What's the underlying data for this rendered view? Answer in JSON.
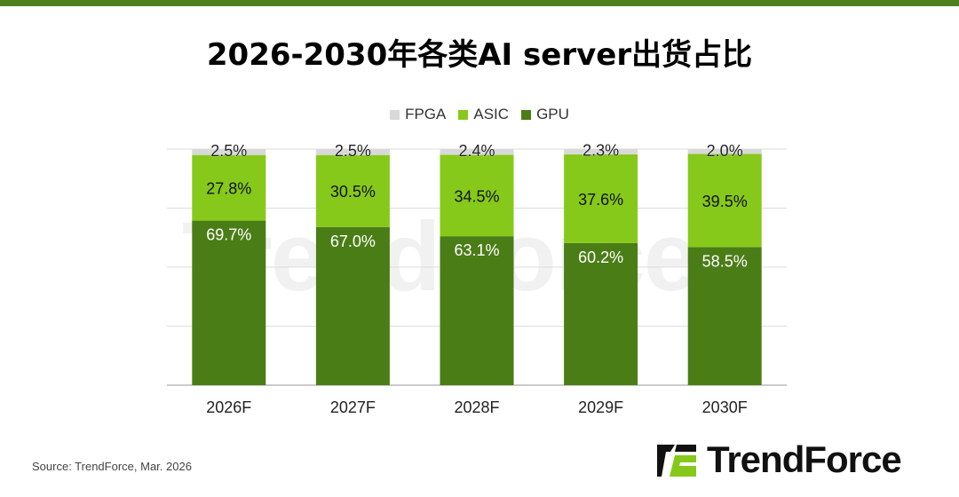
{
  "title": "2026-2030年各类AI server出货占比",
  "source": "Source: TrendForce, Mar. 2026",
  "logo_text": "TrendForce",
  "colors": {
    "GPU": "#4b7d17",
    "ASIC": "#86c91a",
    "FPGA": "#d9d9d9",
    "brand_bar": "#4d7f1e"
  },
  "chart_data": {
    "type": "bar",
    "stacked": true,
    "categories": [
      "2026F",
      "2027F",
      "2028F",
      "2029F",
      "2030F"
    ],
    "series": [
      {
        "name": "GPU",
        "values": [
          69.7,
          67.0,
          63.1,
          60.2,
          58.5
        ],
        "labels": [
          "69.7%",
          "67.0%",
          "63.1%",
          "60.2%",
          "58.5%"
        ]
      },
      {
        "name": "ASIC",
        "values": [
          27.8,
          30.5,
          34.5,
          37.6,
          39.5
        ],
        "labels": [
          "27.8%",
          "30.5%",
          "34.5%",
          "37.6%",
          "39.5%"
        ]
      },
      {
        "name": "FPGA",
        "values": [
          2.5,
          2.5,
          2.4,
          2.3,
          2.0
        ],
        "labels": [
          "2.5%",
          "2.5%",
          "2.4%",
          "2.3%",
          "2.0%"
        ]
      }
    ],
    "legend": [
      "FPGA",
      "ASIC",
      "GPU"
    ],
    "legend_position": "top",
    "ylim": [
      0,
      100
    ],
    "grid": true
  }
}
